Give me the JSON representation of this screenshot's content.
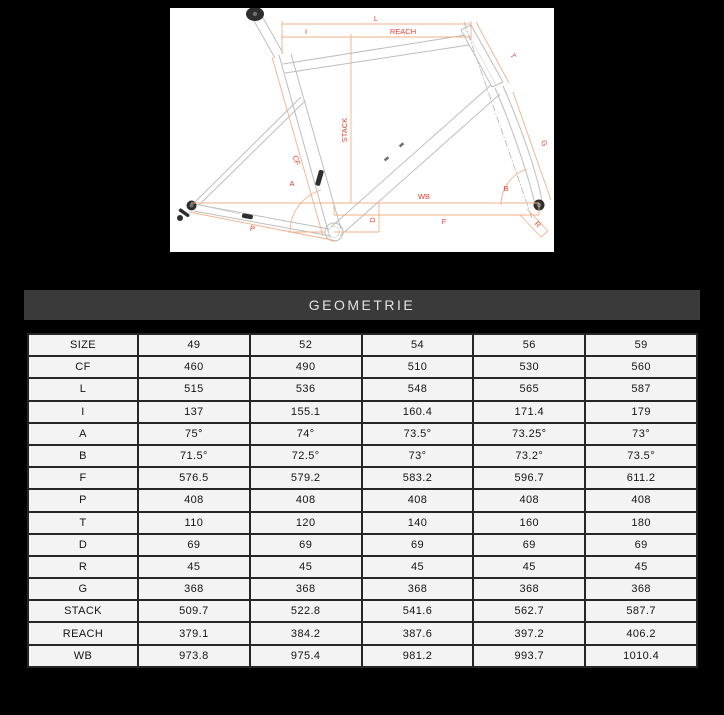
{
  "page": {
    "background": "#000000"
  },
  "diagram": {
    "description": "bike-frame-geometry-drawing",
    "background": "#ffffff",
    "colors": {
      "dimension_line": "#f1b18a",
      "dimension_label": "#e8402f",
      "frame_line": "#bdbdbd"
    },
    "labels": {
      "L": "L",
      "I": "I",
      "REACH": "REACH",
      "STACK": "STACK",
      "CF": "CF",
      "A": "A",
      "WB": "WB",
      "D": "D",
      "F": "F",
      "P": "P",
      "T": "T",
      "G": "G",
      "B": "B",
      "R": "R"
    }
  },
  "geometry_table": {
    "title": "GEOMETRIE",
    "rows": [
      {
        "label": "SIZE",
        "values": [
          "49",
          "52",
          "54",
          "56",
          "59"
        ]
      },
      {
        "label": "CF",
        "values": [
          "460",
          "490",
          "510",
          "530",
          "560"
        ]
      },
      {
        "label": "L",
        "values": [
          "515",
          "536",
          "548",
          "565",
          "587"
        ]
      },
      {
        "label": "I",
        "values": [
          "137",
          "155.1",
          "160.4",
          "171.4",
          "179"
        ]
      },
      {
        "label": "A",
        "values": [
          "75°",
          "74°",
          "73.5°",
          "73.25°",
          "73°"
        ]
      },
      {
        "label": "B",
        "values": [
          "71.5°",
          "72.5°",
          "73°",
          "73.2°",
          "73.5°"
        ]
      },
      {
        "label": "F",
        "values": [
          "576.5",
          "579.2",
          "583.2",
          "596.7",
          "611.2"
        ]
      },
      {
        "label": "P",
        "values": [
          "408",
          "408",
          "408",
          "408",
          "408"
        ]
      },
      {
        "label": "T",
        "values": [
          "110",
          "120",
          "140",
          "160",
          "180"
        ]
      },
      {
        "label": "D",
        "values": [
          "69",
          "69",
          "69",
          "69",
          "69"
        ]
      },
      {
        "label": "R",
        "values": [
          "45",
          "45",
          "45",
          "45",
          "45"
        ]
      },
      {
        "label": "G",
        "values": [
          "368",
          "368",
          "368",
          "368",
          "368"
        ]
      },
      {
        "label": "STACK",
        "values": [
          "509.7",
          "522.8",
          "541.6",
          "562.7",
          "587.7"
        ]
      },
      {
        "label": "REACH",
        "values": [
          "379.1",
          "384.2",
          "387.6",
          "397.2",
          "406.2"
        ]
      },
      {
        "label": "WB",
        "values": [
          "973.8",
          "975.4",
          "981.2",
          "993.7",
          "1010.4"
        ]
      }
    ]
  }
}
